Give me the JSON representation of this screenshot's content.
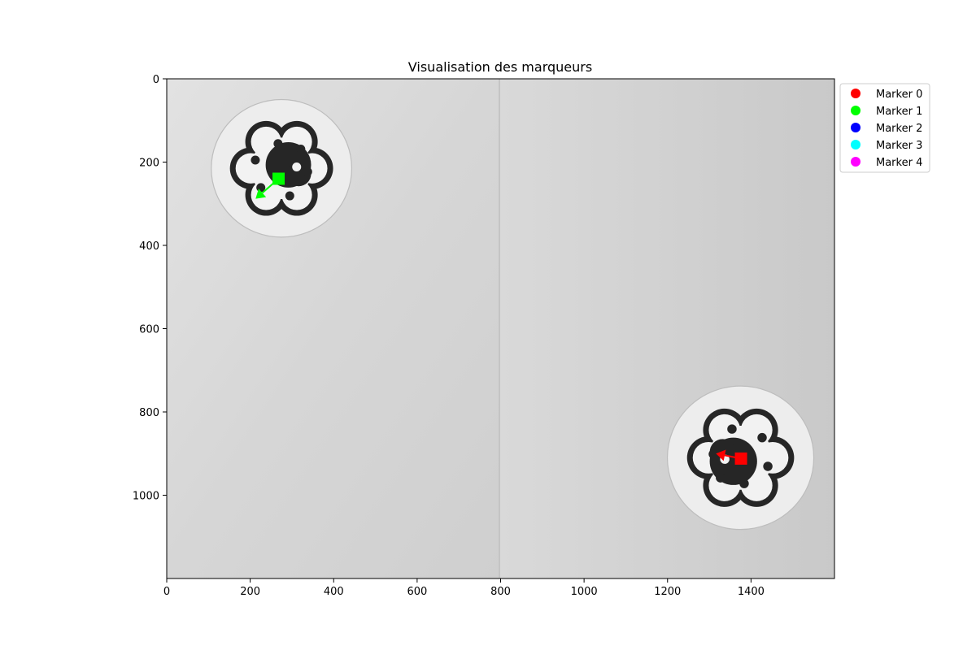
{
  "chart_data": {
    "type": "scatter",
    "title": "Visualisation des marqueurs",
    "xlabel": "",
    "ylabel": "",
    "xlim": [
      0,
      1600
    ],
    "ylim": [
      1200,
      0
    ],
    "x_ticks": [
      0,
      200,
      400,
      600,
      800,
      1000,
      1200,
      1400
    ],
    "y_ticks": [
      0,
      200,
      400,
      600,
      800,
      1000
    ],
    "y_inverted": true,
    "grid": false,
    "background": "grayscale photograph of two circular paw-shaped markers on a white surface",
    "legend_position": "outside-upper-right",
    "legend": [
      {
        "name": "Marker 0",
        "color": "#ff0000"
      },
      {
        "name": "Marker 1",
        "color": "#00ff00"
      },
      {
        "name": "Marker 2",
        "color": "#0000ff"
      },
      {
        "name": "Marker 3",
        "color": "#00ffff"
      },
      {
        "name": "Marker 4",
        "color": "#ff00ff"
      }
    ],
    "detections": [
      {
        "marker": "Marker 1",
        "color": "#00ff00",
        "x": 268,
        "y": 240,
        "arrow_dx": -55,
        "arrow_dy": 48
      },
      {
        "marker": "Marker 0",
        "color": "#ff0000",
        "x": 1376,
        "y": 912,
        "arrow_dx": -60,
        "arrow_dy": -12
      }
    ],
    "photo_markers": [
      {
        "cx": 275,
        "cy": 215,
        "r_disc": 165,
        "rot": 0
      },
      {
        "cx": 1375,
        "cy": 910,
        "r_disc": 172,
        "rot": 180
      }
    ]
  }
}
